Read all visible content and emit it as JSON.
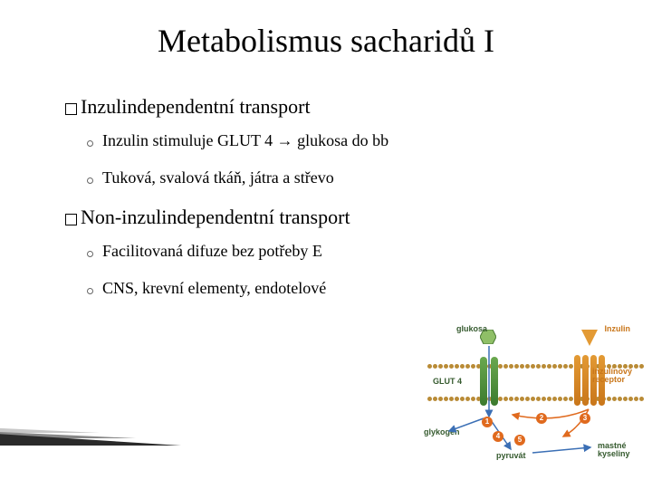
{
  "title": "Metabolismus sacharidů I",
  "sections": [
    {
      "heading_prefix": "Inzulin",
      "heading_rest": " dependentní transport",
      "subs": [
        "Inzulin stimuluje GLUT 4 → glukosa do bb",
        "Tuková, svalová tkáň, játra a střevo"
      ]
    },
    {
      "heading_prefix": "Non-inzulin",
      "heading_rest": " dependentní transport",
      "subs": [
        "Facilitovaná difuze bez potřeby E",
        "CNS, krevní elementy, endotelové"
      ]
    }
  ],
  "diagram": {
    "labels": {
      "glukosa": "glukosa",
      "inzulin": "Inzulin",
      "receptor": "inzulínový receptor",
      "glut4": "GLUT 4",
      "glykogen": "glykogen",
      "pyruvat": "pyruvát",
      "mastne": "mastné kyseliny"
    },
    "colors": {
      "green": "#3c7a2e",
      "orange": "#e06a1e",
      "amber": "#b98b36",
      "blue": "#3b6fb5"
    },
    "numbers": [
      "1",
      "2",
      "3",
      "4",
      "5"
    ]
  }
}
